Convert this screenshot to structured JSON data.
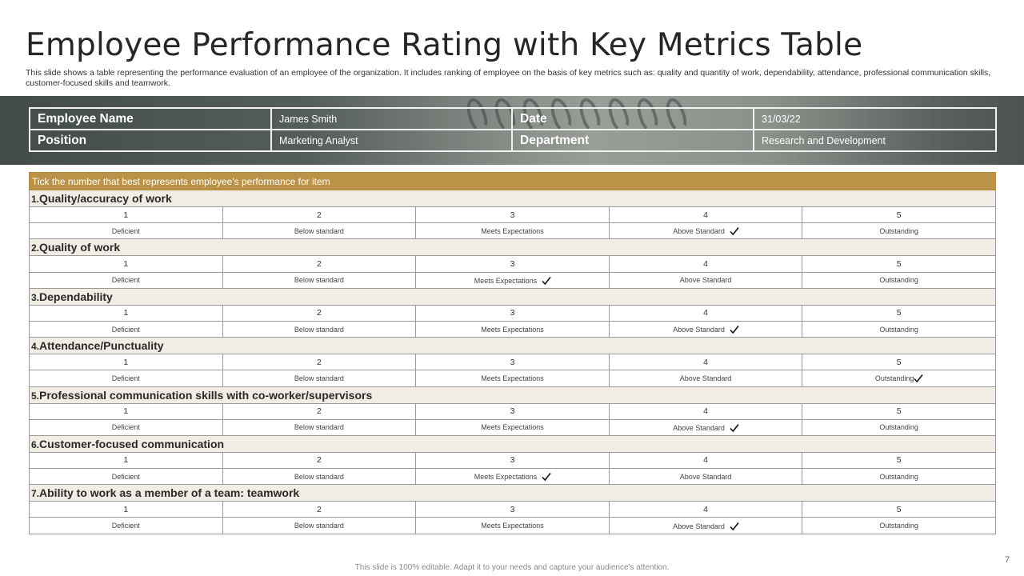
{
  "slide": {
    "title": "Employee Performance Rating with Key Metrics Table",
    "subtitle": "This slide shows a table representing the performance evaluation of an employee of the organization. It includes ranking of employee on the basis of key metrics such as: quality and quantity of work, dependability, attendance, professional communication skills, customer-focused skills and teamwork.",
    "footer": "This slide is 100% editable. Adapt it to your needs and capture your audience's attention.",
    "page_number": "7"
  },
  "info": {
    "employee_name_label": "Employee Name",
    "employee_name_value": "James Smith",
    "date_label": "Date",
    "date_value": "31/03/22",
    "position_label": "Position",
    "position_value": "Marketing Analyst",
    "department_label": "Department",
    "department_value": "Research and Development"
  },
  "table": {
    "header": "Tick the number that best represents employee's performance for item",
    "scale_numbers": [
      "1",
      "2",
      "3",
      "4",
      "5"
    ],
    "scale_labels": [
      "Deficient",
      "Below standard",
      "Meets Expectations",
      "Above Standard",
      "Outstanding"
    ],
    "items": [
      {
        "num": "1.",
        "name": "Quality/accuracy of work",
        "rating": 4
      },
      {
        "num": "2.",
        "name": "Quality of work",
        "rating": 3
      },
      {
        "num": "3.",
        "name": "Dependability",
        "rating": 4
      },
      {
        "num": "4.",
        "name": "Attendance/Punctuality",
        "rating": 5
      },
      {
        "num": "5.",
        "name": "Professional communication skills with co-worker/supervisors",
        "rating": 4
      },
      {
        "num": "6.",
        "name": "Customer-focused communication",
        "rating": 3
      },
      {
        "num": "7.",
        "name": "Ability to work as a member of a team: teamwork",
        "rating": 4
      }
    ]
  },
  "colors": {
    "header_gold": "#bb9348",
    "section_bg": "#f1ece4",
    "banner_dark": "#4e5753"
  }
}
